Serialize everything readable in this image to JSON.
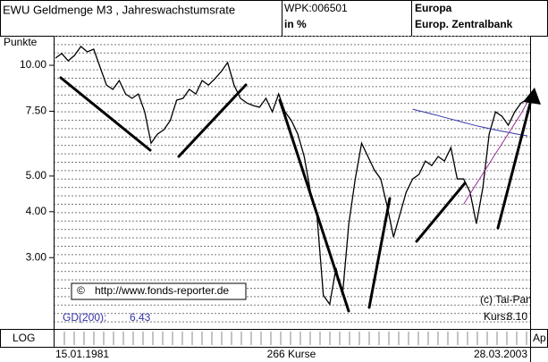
{
  "header": {
    "title": "EWU Geldmenge M3 , Jahreswachstumsrate",
    "code": "WPK:006501",
    "unit": "in %",
    "region": "Europa",
    "source": "Europ. Zentralbank"
  },
  "chart_data": {
    "type": "line",
    "y_label": "Punkte",
    "log": true,
    "ylim": [
      1.92,
      12.03
    ],
    "yticks": [
      {
        "value": 10,
        "label": "10.00"
      },
      {
        "value": 7.5,
        "label": "7.50"
      },
      {
        "value": 5,
        "label": "5.00"
      },
      {
        "value": 4,
        "label": "4.00"
      },
      {
        "value": 3,
        "label": "3.00"
      }
    ],
    "series": [
      {
        "color": "#000000",
        "values": [
          10.46,
          10.76,
          10.28,
          10.64,
          11.25,
          10.88,
          11.06,
          9.89,
          8.84,
          8.6,
          9.09,
          8.36,
          8.13,
          8.36,
          7.47,
          6.14,
          6.5,
          6.68,
          7.07,
          8.04,
          8.13,
          8.6,
          8.36,
          9.09,
          8.84,
          9.19,
          9.62,
          10.17,
          8.84,
          8.13,
          7.9,
          7.77,
          7.69,
          8.13,
          7.47,
          8.36,
          7.47,
          7.07,
          6.5,
          5.65,
          4.52,
          3.93,
          2.37,
          2.24,
          2.81,
          2.37,
          3.71,
          4.91,
          6.14,
          5.65,
          5.19,
          4.91,
          4.15,
          3.41,
          3.93,
          4.52,
          4.91,
          5.05,
          5.49,
          5.34,
          5.65,
          5.49,
          5.97,
          4.91,
          4.91,
          4.52,
          3.71,
          4.64,
          6.5,
          7.47,
          7.27,
          6.87,
          7.47,
          7.9,
          8.1
        ]
      },
      {
        "color": "#3333aa",
        "values": [
          null,
          null,
          null,
          null,
          null,
          null,
          null,
          null,
          null,
          null,
          null,
          null,
          null,
          null,
          null,
          null,
          null,
          null,
          null,
          null,
          null,
          null,
          null,
          null,
          null,
          null,
          null,
          null,
          null,
          null,
          null,
          null,
          null,
          null,
          null,
          null,
          null,
          null,
          null,
          null,
          null,
          null,
          null,
          null,
          null,
          null,
          null,
          null,
          null,
          null,
          null,
          null,
          null,
          null,
          null,
          null,
          7.6,
          7.52,
          7.45,
          7.37,
          7.3,
          7.22,
          7.14,
          7.07,
          6.99,
          6.92,
          6.85,
          6.79,
          6.73,
          6.67,
          6.62,
          6.57,
          6.52,
          6.47,
          6.43
        ]
      },
      {
        "color": "#993399",
        "values": [
          null,
          null,
          null,
          null,
          null,
          null,
          null,
          null,
          null,
          null,
          null,
          null,
          null,
          null,
          null,
          null,
          null,
          null,
          null,
          null,
          null,
          null,
          null,
          null,
          null,
          null,
          null,
          null,
          null,
          null,
          null,
          null,
          null,
          null,
          null,
          null,
          null,
          null,
          null,
          null,
          null,
          null,
          null,
          null,
          null,
          null,
          null,
          null,
          null,
          null,
          null,
          null,
          null,
          null,
          null,
          null,
          null,
          null,
          null,
          null,
          null,
          null,
          null,
          null,
          4.19,
          4.47,
          4.76,
          5.07,
          5.4,
          5.75,
          6.12,
          6.52,
          6.94,
          7.39,
          7.94
        ]
      }
    ],
    "annotations": {
      "copyright_symbol": "©",
      "copyright": "http://www.fonds-reporter.de",
      "vendor": "(c) Tai-Pan",
      "kurs_label": "Kurs:",
      "kurs": "8.10",
      "gd_label": "GD(200):",
      "gd": "6.43"
    },
    "scale_mode": "LOG",
    "start_date": "15.01.1981",
    "count": "266 Kurse",
    "end_date": "28.03.2003",
    "cut_label": "Ap"
  }
}
